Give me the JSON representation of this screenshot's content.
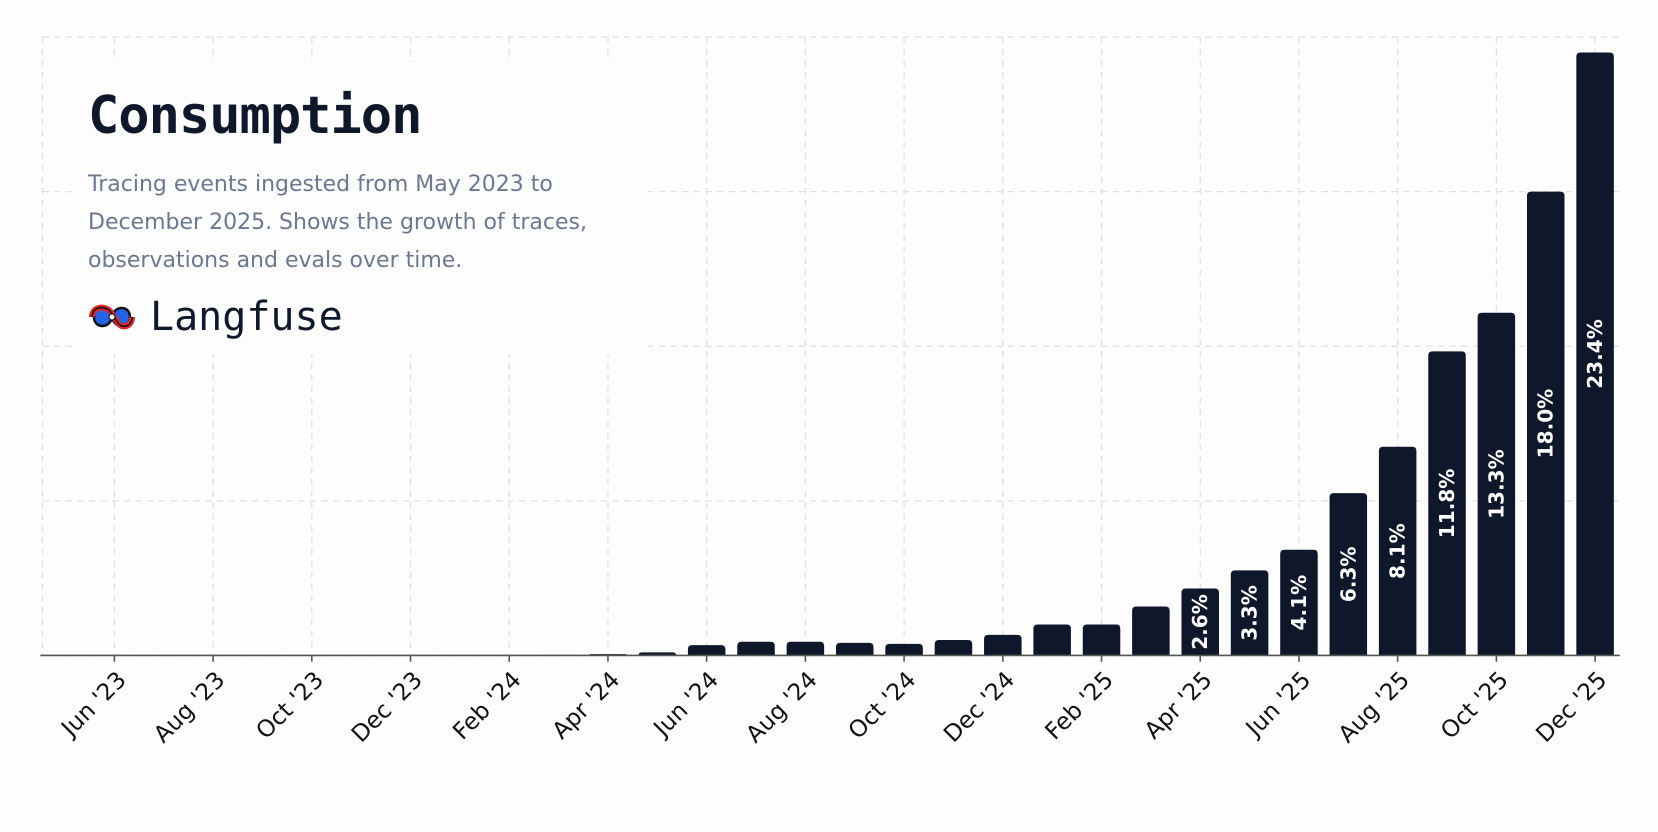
{
  "chart_data": {
    "type": "bar",
    "title": "Consumption",
    "subtitle": "Tracing events ingested from May 2023 to December 2025. Shows the growth of traces, observations and evals over time.",
    "brand": "Langfuse",
    "categories": [
      null,
      "Jun '23",
      null,
      "Aug '23",
      null,
      "Oct '23",
      null,
      "Dec '23",
      null,
      "Feb '24",
      null,
      "Apr '24",
      null,
      "Jun '24",
      null,
      "Aug '24",
      null,
      "Oct '24",
      null,
      "Dec '24",
      null,
      "Feb '25",
      null,
      "Apr '25",
      null,
      "Jun '25",
      null,
      "Aug '25",
      null,
      "Oct '25",
      null,
      "Dec '25"
    ],
    "values": [
      0,
      0,
      0,
      0,
      0,
      0,
      0,
      0,
      0,
      0,
      0.02,
      0.05,
      0.12,
      0.4,
      0.53,
      0.53,
      0.49,
      0.45,
      0.6,
      0.8,
      1.2,
      1.2,
      1.9,
      2.6,
      3.3,
      4.1,
      6.3,
      8.1,
      11.8,
      13.3,
      18.0,
      23.4
    ],
    "value_labels": [
      null,
      null,
      null,
      null,
      null,
      null,
      null,
      null,
      null,
      null,
      null,
      null,
      null,
      null,
      null,
      null,
      null,
      null,
      null,
      null,
      null,
      null,
      null,
      "2.6%",
      "3.3%",
      "4.1%",
      "6.3%",
      "8.1%",
      "11.8%",
      "13.3%",
      "18.0%",
      "23.4%"
    ],
    "color": "#0f172a",
    "ylim": [
      0,
      24
    ],
    "yticks": [
      0,
      6,
      12,
      18,
      24
    ],
    "grid": true
  }
}
